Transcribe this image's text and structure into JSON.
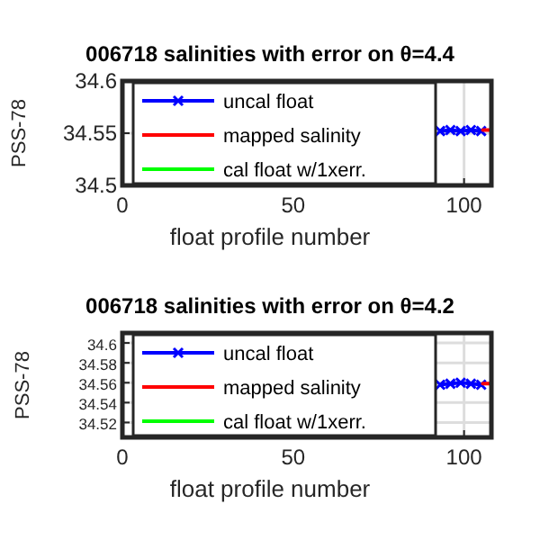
{
  "chart_data": [
    {
      "type": "line",
      "title": "006718 salinities with error on θ=4.4",
      "xlabel": "float profile number",
      "ylabel": "PSS-78",
      "xlim": [
        0,
        108
      ],
      "xticks": [
        0,
        50,
        100
      ],
      "ylim": [
        34.5,
        34.6
      ],
      "yticks": [
        34.5,
        34.55,
        34.6
      ],
      "grid": true,
      "legend": "left",
      "series": [
        {
          "name": "uncal float",
          "color": "#0000ff",
          "marker": "cross",
          "x": [
            93,
            96,
            99,
            102,
            105
          ],
          "values": [
            34.552,
            34.553,
            34.552,
            34.553,
            34.552
          ]
        },
        {
          "name": "mapped salinity",
          "color": "#ff0000",
          "x": [
            105.5,
            107.8
          ],
          "values": [
            34.553,
            34.553
          ]
        },
        {
          "name": "cal float w/1xerr.",
          "color": "#00ff00"
        }
      ]
    },
    {
      "type": "line",
      "title": "006718 salinities with error on θ=4.2",
      "xlabel": "float profile number",
      "ylabel": "PSS-78",
      "xlim": [
        0,
        108
      ],
      "xticks": [
        0,
        50,
        100
      ],
      "ylim": [
        34.505,
        34.61
      ],
      "yticks": [
        34.52,
        34.54,
        34.56,
        34.58,
        34.6
      ],
      "grid": true,
      "legend": "left",
      "series": [
        {
          "name": "uncal float",
          "color": "#0000ff",
          "marker": "cross",
          "x": [
            93,
            96,
            99,
            102,
            105
          ],
          "values": [
            34.558,
            34.559,
            34.56,
            34.559,
            34.558
          ]
        },
        {
          "name": "mapped salinity",
          "color": "#ff0000",
          "x": [
            105.5,
            107.8
          ],
          "values": [
            34.559,
            34.559
          ]
        },
        {
          "name": "cal float w/1xerr.",
          "color": "#00ff00"
        }
      ]
    }
  ]
}
